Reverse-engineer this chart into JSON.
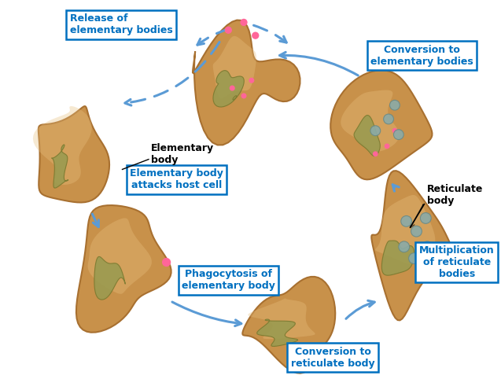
{
  "background_color": "#ffffff",
  "cell_color": "#C8914A",
  "cell_highlight": "#E8C080",
  "cell_edge": "#A87030",
  "organelle_color": "#9B9B50",
  "organelle_edge": "#7A7A30",
  "eb_color": "#FF6699",
  "rb_color": "#8AABA8",
  "rb_edge": "#6A8A87",
  "arrow_color": "#5B9BD5",
  "label_color": "#0070C0",
  "black_color": "#000000",
  "figsize": [
    6.37,
    4.82
  ],
  "dpi": 100,
  "labels": {
    "release": "Release of\nelementary bodies",
    "conversion_eb": "Conversion to\nelementary bodies",
    "eb_attacks": "Elementary body\nattacks host cell",
    "reticulate_body": "Reticulate\nbody",
    "multiplication": "Multiplication\nof reticulate\nbodies",
    "conversion_rb": "Conversion to\nreticulate body",
    "phagocytosis": "Phagocytosis of\nelementary body",
    "elementary_body": "Elementary\nbody"
  }
}
